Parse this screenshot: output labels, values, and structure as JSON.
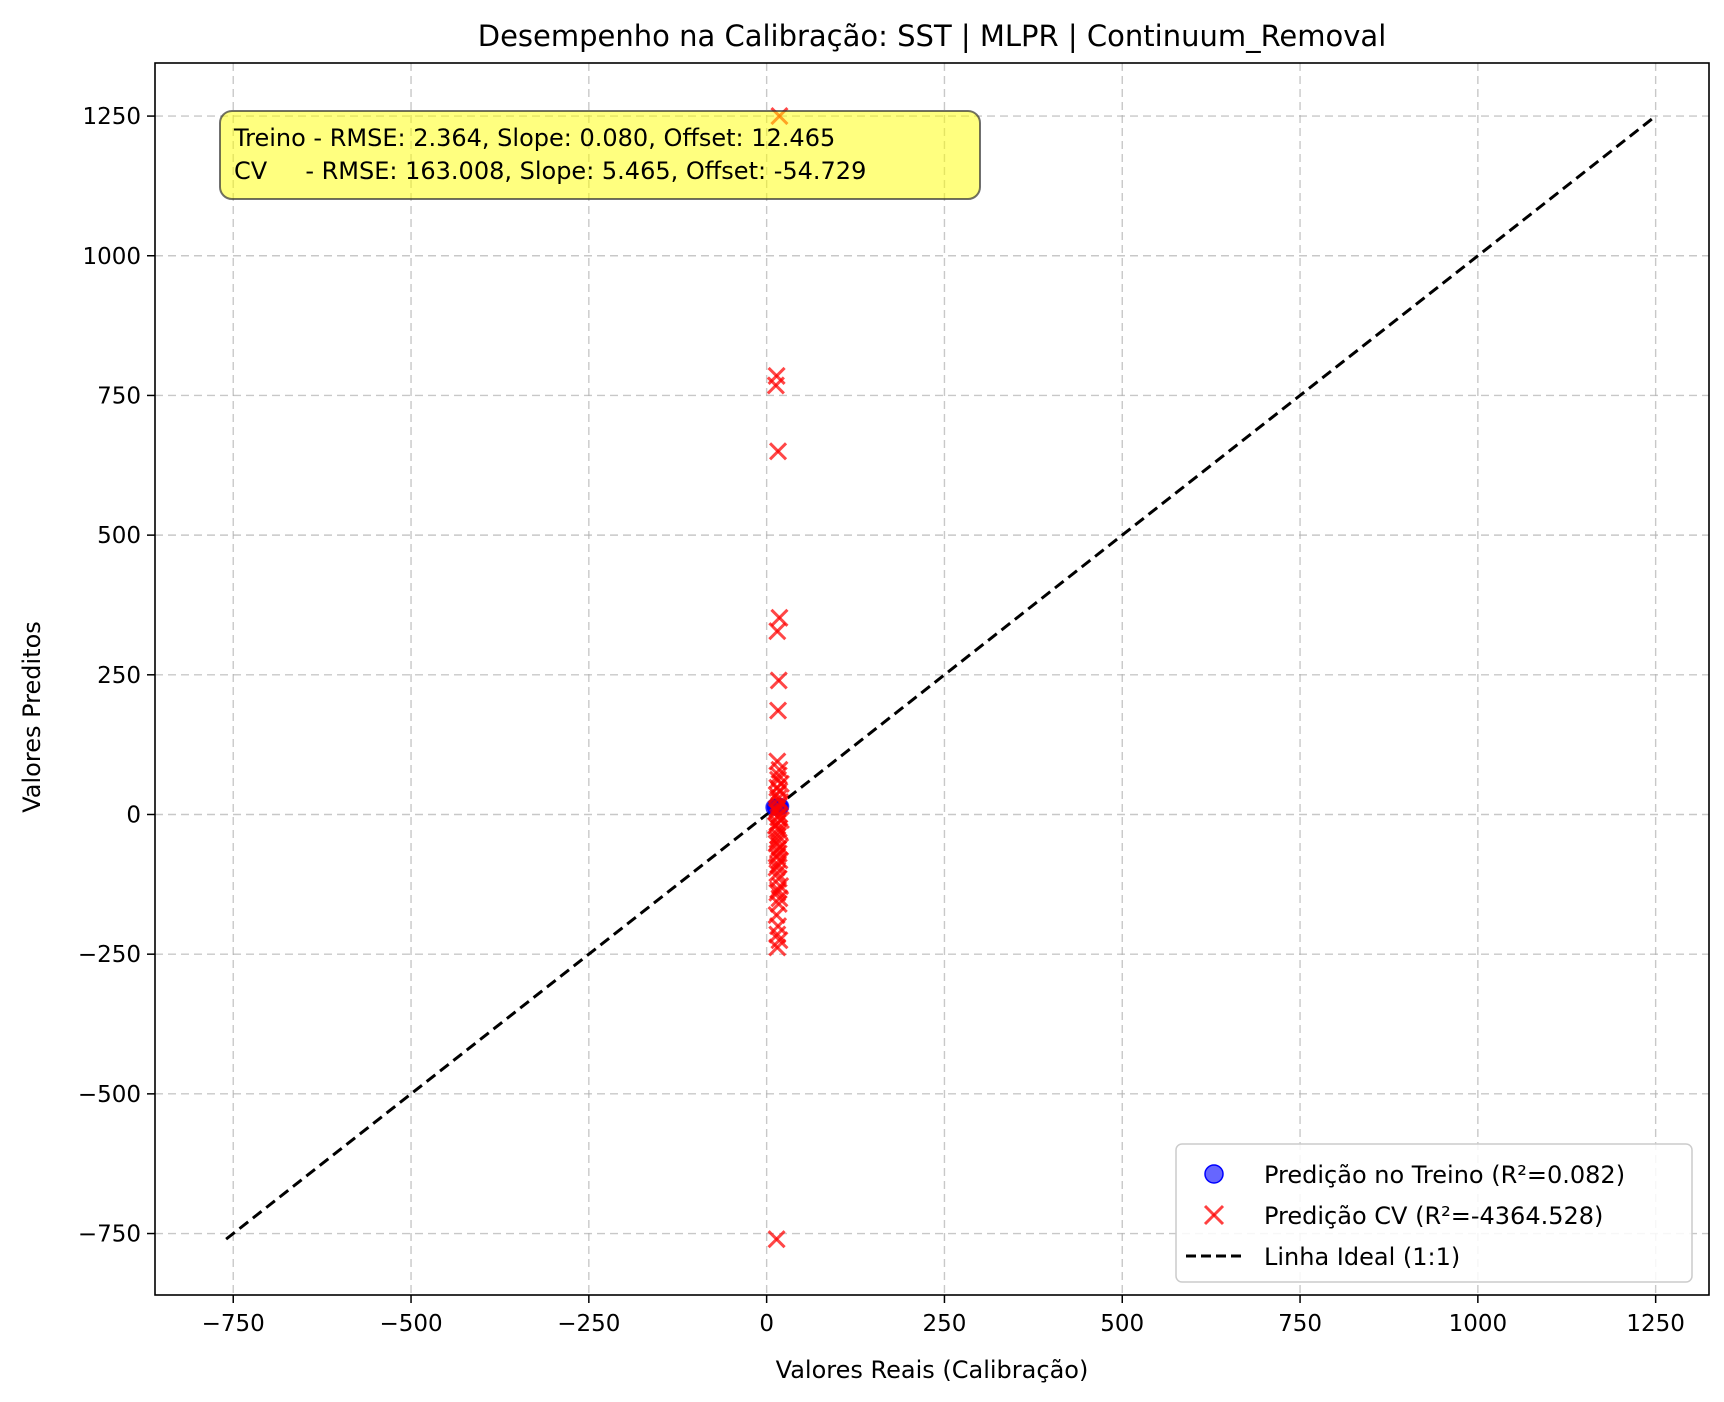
{
  "chart_data": {
    "type": "scatter",
    "title": "Desempenho na Calibração: SST | MLPR | Continuum_Removal",
    "xlabel": "Valores Reais (Calibração)",
    "ylabel": "Valores Preditos",
    "xlim": [
      -860,
      1325
    ],
    "ylim": [
      -860,
      1345
    ],
    "xticks": [
      -750,
      -500,
      -250,
      0,
      250,
      500,
      750,
      1000,
      1250
    ],
    "yticks": [
      -750,
      -500,
      -250,
      0,
      250,
      500,
      750,
      1000,
      1250
    ],
    "grid": true,
    "legend_position": "bottom-right",
    "annotation": {
      "lines": [
        "Treino - RMSE: 2.364, Slope: 0.080, Offset: 12.465",
        "CV     - RMSE: 163.008, Slope: 5.465, Offset: -54.729"
      ],
      "background": "#ffff00"
    },
    "series": [
      {
        "name": "Predição no Treino (R²=0.082)",
        "marker": "circle",
        "color": "#0000ff",
        "x": [
          10,
          12,
          13,
          14,
          15,
          16,
          17,
          18,
          19,
          20,
          12,
          14,
          16,
          18,
          15,
          17
        ],
        "y": [
          13,
          13.5,
          13.2,
          13.6,
          13.7,
          13.8,
          13.9,
          14,
          14.1,
          14.2,
          13.3,
          13.5,
          13.7,
          14,
          13.6,
          13.8
        ]
      },
      {
        "name": "Predição CV (R²=-4364.528)",
        "marker": "x",
        "color": "#ff0000",
        "x": [
          18,
          14,
          13,
          16,
          18,
          15,
          17,
          16,
          15,
          18,
          17,
          16,
          20,
          15,
          18,
          14,
          16,
          19,
          17,
          15,
          14,
          18,
          16,
          20,
          15,
          13,
          17,
          18,
          16,
          15,
          14,
          19,
          16,
          17,
          15,
          18,
          16,
          14,
          15,
          17,
          19,
          16,
          15,
          18,
          17,
          14,
          16,
          15,
          18,
          15,
          14
        ],
        "y": [
          1250,
          785,
          768,
          650,
          352,
          328,
          240,
          186,
          95,
          80,
          70,
          62,
          55,
          48,
          42,
          35,
          28,
          22,
          15,
          10,
          5,
          0,
          -5,
          -10,
          -15,
          -20,
          -25,
          -30,
          -38,
          -45,
          -52,
          -58,
          -62,
          -70,
          -75,
          -82,
          -90,
          -95,
          -105,
          -115,
          -128,
          -135,
          -140,
          -150,
          -160,
          -180,
          -200,
          -215,
          -225,
          -238,
          -760
        ]
      },
      {
        "name": "Linha Ideal (1:1)",
        "marker": "dashed-line",
        "color": "#000000",
        "x": [
          -760,
          1245
        ],
        "y": [
          -760,
          1245
        ]
      }
    ]
  }
}
